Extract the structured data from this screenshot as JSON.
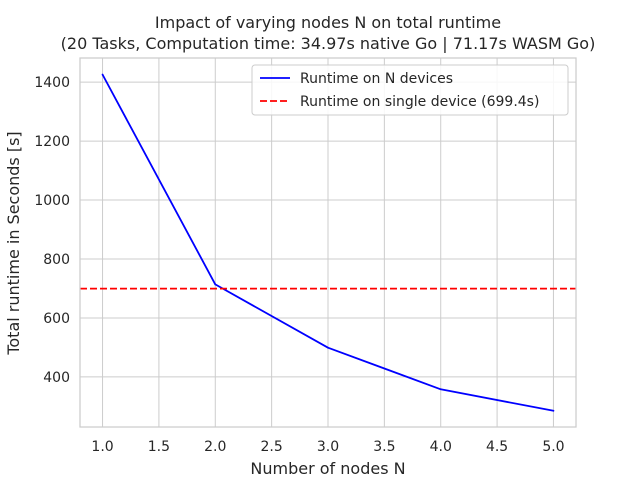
{
  "chart_data": {
    "type": "line",
    "title": "Impact of varying nodes N on total runtime",
    "subtitle": "(20 Tasks, Computation time: 34.97s native Go | 71.17s WASM Go)",
    "xlabel": "Number of nodes N",
    "ylabel": "Total runtime in Seconds [s]",
    "xlim": [
      0.8,
      5.2
    ],
    "ylim": [
      230,
      1482
    ],
    "xticks": [
      1.0,
      1.5,
      2.0,
      2.5,
      3.0,
      3.5,
      4.0,
      4.5,
      5.0
    ],
    "xtick_labels": [
      "1.0",
      "1.5",
      "2.0",
      "2.5",
      "3.0",
      "3.5",
      "4.0",
      "4.5",
      "5.0"
    ],
    "yticks": [
      400,
      600,
      800,
      1000,
      1200,
      1400
    ],
    "ytick_labels": [
      "400",
      "600",
      "800",
      "1000",
      "1200",
      "1400"
    ],
    "grid": true,
    "legend_position": "top-right",
    "series": [
      {
        "name": "Runtime on N devices",
        "color": "#0000ff",
        "style": "solid",
        "x": [
          1,
          2,
          3,
          4,
          5
        ],
        "y": [
          1426,
          714,
          499,
          358,
          285
        ]
      },
      {
        "name": "Runtime on single device (699.4s)",
        "color": "#ff0000",
        "style": "dashed",
        "type": "hline",
        "y": 699.4
      }
    ]
  }
}
